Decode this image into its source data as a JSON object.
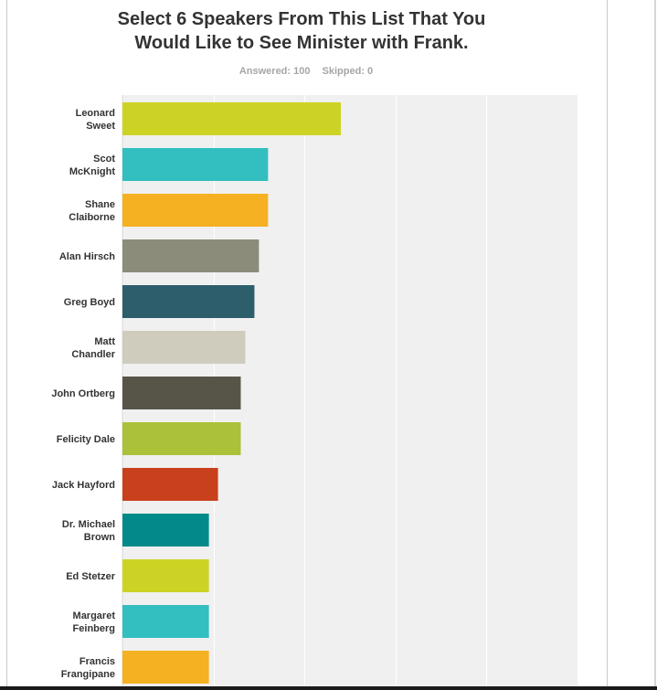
{
  "title_lines": [
    "Select 6 Speakers From This List That You",
    "Would Like to See Minister with Frank."
  ],
  "stats": {
    "answered": "Answered: 100",
    "skipped": "Skipped: 0"
  },
  "chart_data": {
    "type": "bar",
    "orientation": "horizontal",
    "categories": [
      [
        "Leonard",
        "Sweet"
      ],
      [
        "Scot",
        "McKnight"
      ],
      [
        "Shane",
        "Claiborne"
      ],
      [
        "Alan Hirsch"
      ],
      [
        "Greg Boyd"
      ],
      [
        "Matt",
        "Chandler"
      ],
      [
        "John Ortberg"
      ],
      [
        "Felicity Dale"
      ],
      [
        "Jack Hayford"
      ],
      [
        "Dr. Michael",
        "Brown"
      ],
      [
        "Ed Stetzer"
      ],
      [
        "Margaret",
        "Feinberg"
      ],
      [
        "Francis",
        "Frangipane"
      ]
    ],
    "values": [
      48,
      32,
      32,
      30,
      29,
      27,
      26,
      26,
      21,
      19,
      19,
      19,
      19
    ],
    "colors": [
      "#cdd325",
      "#33bebf",
      "#f5b122",
      "#8c8c7a",
      "#2d5e6c",
      "#cfccbe",
      "#575548",
      "#aac139",
      "#c9401c",
      "#028a8a",
      "#cdd325",
      "#33bebf",
      "#f5b122"
    ],
    "xlim": [
      0,
      100
    ],
    "grid": true,
    "grid_values": [
      20,
      40,
      60,
      80
    ],
    "plot_background": "#f0f0f0"
  }
}
